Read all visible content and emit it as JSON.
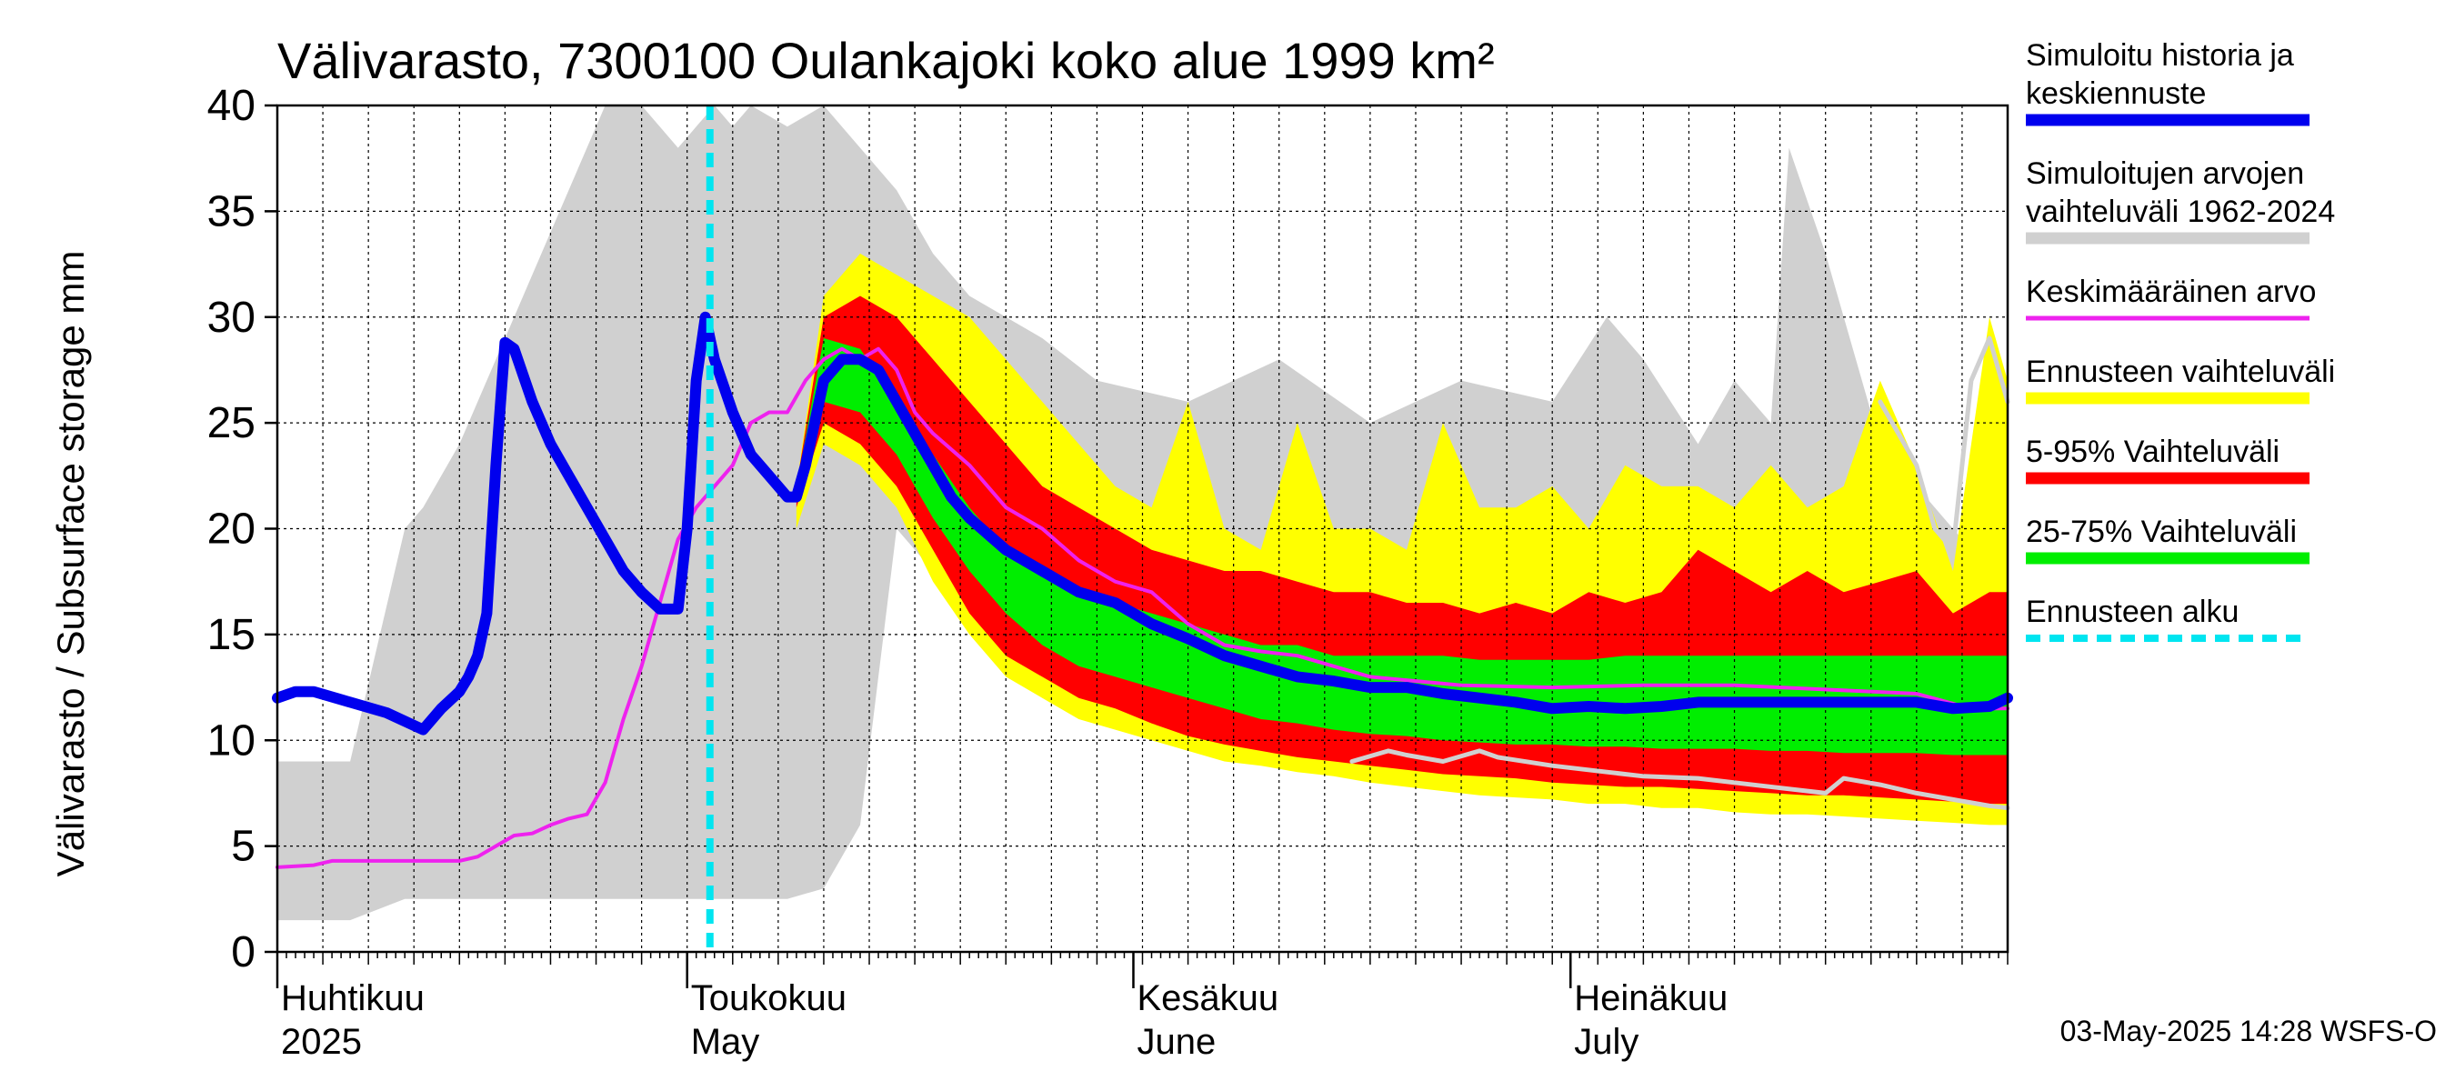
{
  "chart_data": {
    "type": "area",
    "title": "Välivarasto, 7300100 Oulankajoki koko alue 1999 km²",
    "ylabel": "Välivarasto / Subsurface storage  mm",
    "ylim": [
      0,
      40
    ],
    "yticks": [
      0,
      5,
      10,
      15,
      20,
      25,
      30,
      35,
      40
    ],
    "x_days": [
      0,
      190
    ],
    "forecast_start_day": 47.5,
    "months": [
      {
        "day": 0,
        "line1": "Huhtikuu",
        "line2": "2025"
      },
      {
        "day": 45,
        "line1": "Toukokuu",
        "line2": "May"
      },
      {
        "day": 94,
        "line1": "Kesäkuu",
        "line2": "June"
      },
      {
        "day": 142,
        "line1": "Heinäkuu",
        "line2": "July"
      }
    ],
    "series": [
      {
        "name": "Simuloitujen arvojen vaihteluväli 1962-2024",
        "kind": "band",
        "color": "#d0d0d0",
        "x": [
          0,
          8,
          14,
          16,
          20,
          24,
          28,
          32,
          36,
          40,
          44,
          46,
          48,
          50,
          52,
          56,
          60,
          64,
          68,
          72,
          76,
          80,
          84,
          90,
          100,
          110,
          120,
          130,
          140,
          146,
          150,
          156,
          160,
          164,
          166,
          170,
          176,
          180,
          186,
          190
        ],
        "low": [
          1.5,
          1.5,
          2.5,
          2.5,
          2.5,
          2.5,
          2.5,
          2.5,
          2.5,
          2.5,
          2.5,
          2.5,
          2.5,
          2.5,
          2.5,
          2.5,
          3,
          6,
          20,
          18,
          16,
          15,
          14,
          13,
          12,
          11,
          10.5,
          10,
          9.5,
          9,
          8.8,
          8.5,
          8.2,
          8.0,
          7.8,
          7.5,
          7.3,
          7.2,
          7.0,
          6.8
        ],
        "high": [
          9,
          9,
          20,
          21,
          24,
          28,
          32,
          36,
          40,
          40,
          38,
          39,
          40,
          39,
          40,
          39,
          40,
          38,
          36,
          33,
          31,
          30,
          29,
          27,
          26,
          28,
          25,
          27,
          26,
          30,
          28,
          24,
          27,
          25,
          38,
          33,
          24,
          22,
          19,
          20
        ]
      },
      {
        "name": "Ennusteen vaihteluväli",
        "kind": "band",
        "color": "#ffff00",
        "x": [
          57,
          60,
          64,
          68,
          72,
          76,
          80,
          84,
          88,
          92,
          96,
          100,
          104,
          108,
          112,
          116,
          120,
          124,
          128,
          132,
          136,
          140,
          144,
          148,
          152,
          156,
          160,
          164,
          168,
          172,
          176,
          180,
          184,
          188,
          190
        ],
        "low": [
          20,
          24,
          23,
          21,
          17.5,
          15,
          13,
          12,
          11,
          10.5,
          10,
          9.5,
          9.0,
          8.8,
          8.5,
          8.3,
          8.0,
          7.8,
          7.6,
          7.4,
          7.3,
          7.2,
          7.0,
          7.0,
          6.8,
          6.8,
          6.6,
          6.5,
          6.5,
          6.4,
          6.3,
          6.2,
          6.1,
          6.0,
          6.0
        ],
        "high": [
          22,
          31,
          33,
          32,
          31,
          30,
          28,
          26,
          24,
          22,
          21,
          26,
          20,
          19,
          25,
          20,
          20,
          19,
          25,
          21,
          21,
          22,
          20,
          23,
          22,
          22,
          21,
          23,
          21,
          22,
          27,
          23,
          18,
          30,
          27
        ]
      },
      {
        "name": "5-95% Vaihteluväli",
        "kind": "band",
        "color": "#ff0000",
        "x": [
          57,
          60,
          64,
          68,
          72,
          76,
          80,
          84,
          88,
          92,
          96,
          100,
          104,
          108,
          112,
          116,
          120,
          124,
          128,
          132,
          136,
          140,
          144,
          148,
          152,
          156,
          160,
          164,
          168,
          172,
          176,
          180,
          184,
          188,
          190
        ],
        "low": [
          21,
          25,
          24,
          22,
          19,
          16,
          14,
          13,
          12,
          11.5,
          10.8,
          10.2,
          9.8,
          9.5,
          9.2,
          9.0,
          8.8,
          8.6,
          8.4,
          8.3,
          8.2,
          8.0,
          7.9,
          7.8,
          7.8,
          7.7,
          7.6,
          7.5,
          7.4,
          7.4,
          7.3,
          7.2,
          7.1,
          7.0,
          7.0
        ],
        "high": [
          22,
          30,
          31,
          30,
          28,
          26,
          24,
          22,
          21,
          20,
          19,
          18.5,
          18,
          18,
          17.5,
          17,
          17,
          16.5,
          16.5,
          16,
          16.5,
          16,
          17,
          16.5,
          17,
          19,
          18,
          17,
          18,
          17,
          17.5,
          18,
          16,
          17,
          17
        ]
      },
      {
        "name": "25-75% Vaihteluväli",
        "kind": "band",
        "color": "#00ee00",
        "x": [
          57,
          60,
          64,
          68,
          72,
          76,
          80,
          84,
          88,
          92,
          96,
          100,
          104,
          108,
          112,
          116,
          120,
          124,
          128,
          132,
          136,
          140,
          144,
          148,
          152,
          156,
          160,
          164,
          168,
          172,
          176,
          180,
          184,
          188,
          190
        ],
        "low": [
          22,
          26,
          25.5,
          23.5,
          20.5,
          18,
          16,
          14.5,
          13.5,
          13,
          12.5,
          12,
          11.5,
          11,
          10.8,
          10.5,
          10.3,
          10.2,
          10,
          9.9,
          9.8,
          9.8,
          9.7,
          9.7,
          9.6,
          9.6,
          9.6,
          9.5,
          9.5,
          9.4,
          9.4,
          9.4,
          9.3,
          9.3,
          9.3
        ],
        "high": [
          22,
          29,
          28.5,
          26,
          23.5,
          21,
          19,
          18,
          17,
          16.5,
          16,
          15.5,
          15,
          14.5,
          14.5,
          14,
          14,
          14,
          14,
          13.8,
          13.8,
          13.8,
          13.8,
          14,
          14,
          14,
          14,
          14,
          14,
          14,
          14,
          14,
          14,
          14,
          14
        ]
      },
      {
        "name": "Keskimääräinen arvo",
        "kind": "line",
        "color": "#ee22ee",
        "x": [
          0,
          4,
          6,
          10,
          14,
          18,
          20,
          22,
          24,
          26,
          28,
          30,
          32,
          34,
          36,
          38,
          40,
          42,
          44,
          46,
          48,
          50,
          52,
          54,
          56,
          58,
          60,
          62,
          64,
          66,
          68,
          70,
          72,
          76,
          80,
          84,
          88,
          92,
          96,
          100,
          104,
          108,
          112,
          116,
          120,
          130,
          140,
          150,
          160,
          170,
          180,
          186,
          190
        ],
        "y": [
          4,
          4.1,
          4.3,
          4.3,
          4.3,
          4.3,
          4.3,
          4.5,
          5,
          5.5,
          5.6,
          6,
          6.3,
          6.5,
          8,
          11,
          13.5,
          16.5,
          19.5,
          21,
          22,
          23,
          25,
          25.5,
          25.5,
          27,
          28,
          28.5,
          28,
          28.5,
          27.5,
          25.5,
          24.5,
          23,
          21,
          20,
          18.5,
          17.5,
          17,
          15.5,
          14.5,
          14.2,
          14,
          13.5,
          13,
          12.6,
          12.5,
          12.6,
          12.6,
          12.4,
          12.2,
          11.5,
          11.5
        ]
      },
      {
        "name": "Simuloitu historia ja keskiennuste",
        "kind": "line",
        "color": "#0000ee",
        "x": [
          0,
          2,
          4,
          8,
          12,
          16,
          18,
          20,
          21,
          22,
          23,
          24,
          25,
          26,
          28,
          30,
          32,
          34,
          36,
          38,
          40,
          42,
          44,
          45,
          46,
          47,
          48,
          50,
          52,
          54,
          56,
          57,
          58,
          60,
          62,
          64,
          66,
          68,
          70,
          72,
          74,
          76,
          80,
          84,
          88,
          92,
          96,
          100,
          104,
          108,
          112,
          116,
          120,
          124,
          128,
          132,
          136,
          140,
          144,
          148,
          152,
          156,
          160,
          164,
          168,
          172,
          176,
          180,
          184,
          188,
          190
        ],
        "y": [
          12,
          12.3,
          12.3,
          11.8,
          11.3,
          10.5,
          11.5,
          12.3,
          13,
          14,
          16,
          23,
          28.8,
          28.5,
          26,
          24,
          22.5,
          21,
          19.5,
          18,
          17,
          16.2,
          16.2,
          20,
          27,
          30,
          28,
          25.5,
          23.5,
          22.5,
          21.5,
          21.5,
          23,
          27,
          28,
          28,
          27.5,
          26,
          24.5,
          23,
          21.5,
          20.5,
          19,
          18,
          17,
          16.5,
          15.5,
          14.8,
          14,
          13.5,
          13,
          12.8,
          12.5,
          12.5,
          12.2,
          12,
          11.8,
          11.5,
          11.6,
          11.5,
          11.6,
          11.8,
          11.8,
          11.8,
          11.8,
          11.8,
          11.8,
          11.8,
          11.5,
          11.6,
          12
        ]
      },
      {
        "name": "grey-lower-trace",
        "kind": "line",
        "color": "#d0d0d0",
        "x": [
          118,
          122,
          124,
          128,
          132,
          134,
          140,
          146,
          150,
          156,
          160,
          170,
          172,
          176,
          180,
          184,
          188,
          190
        ],
        "y": [
          9,
          9.5,
          9.3,
          9,
          9.5,
          9.2,
          8.8,
          8.5,
          8.3,
          8.2,
          8.0,
          7.5,
          8.2,
          7.9,
          7.5,
          7.2,
          6.9,
          6.8
        ]
      },
      {
        "name": "grey-upper-trace",
        "kind": "line",
        "color": "#d0d0d0",
        "x": [
          176,
          180,
          182,
          184,
          186,
          188,
          190
        ],
        "y": [
          26,
          23,
          20,
          19,
          27,
          29,
          26
        ]
      }
    ],
    "legend": [
      {
        "line1": "Simuloitu historia ja",
        "line2": "keskiennuste",
        "color": "#0000ee",
        "style": "solid"
      },
      {
        "line1": "Simuloitujen arvojen",
        "line2": "vaihteluväli 1962-2024",
        "color": "#d0d0d0",
        "style": "solid"
      },
      {
        "line1": "Keskimääräinen arvo",
        "line2": "",
        "color": "#ee22ee",
        "style": "thin"
      },
      {
        "line1": "Ennusteen vaihteluväli",
        "line2": "",
        "color": "#ffff00",
        "style": "solid"
      },
      {
        "line1": "5-95% Vaihteluväli",
        "line2": "",
        "color": "#ff0000",
        "style": "solid"
      },
      {
        "line1": "25-75% Vaihteluväli",
        "line2": "",
        "color": "#00ee00",
        "style": "solid"
      },
      {
        "line1": "Ennusteen alku",
        "line2": "",
        "color": "#00e5f0",
        "style": "dashed"
      }
    ],
    "footer": "03-May-2025 14:28 WSFS-O"
  }
}
